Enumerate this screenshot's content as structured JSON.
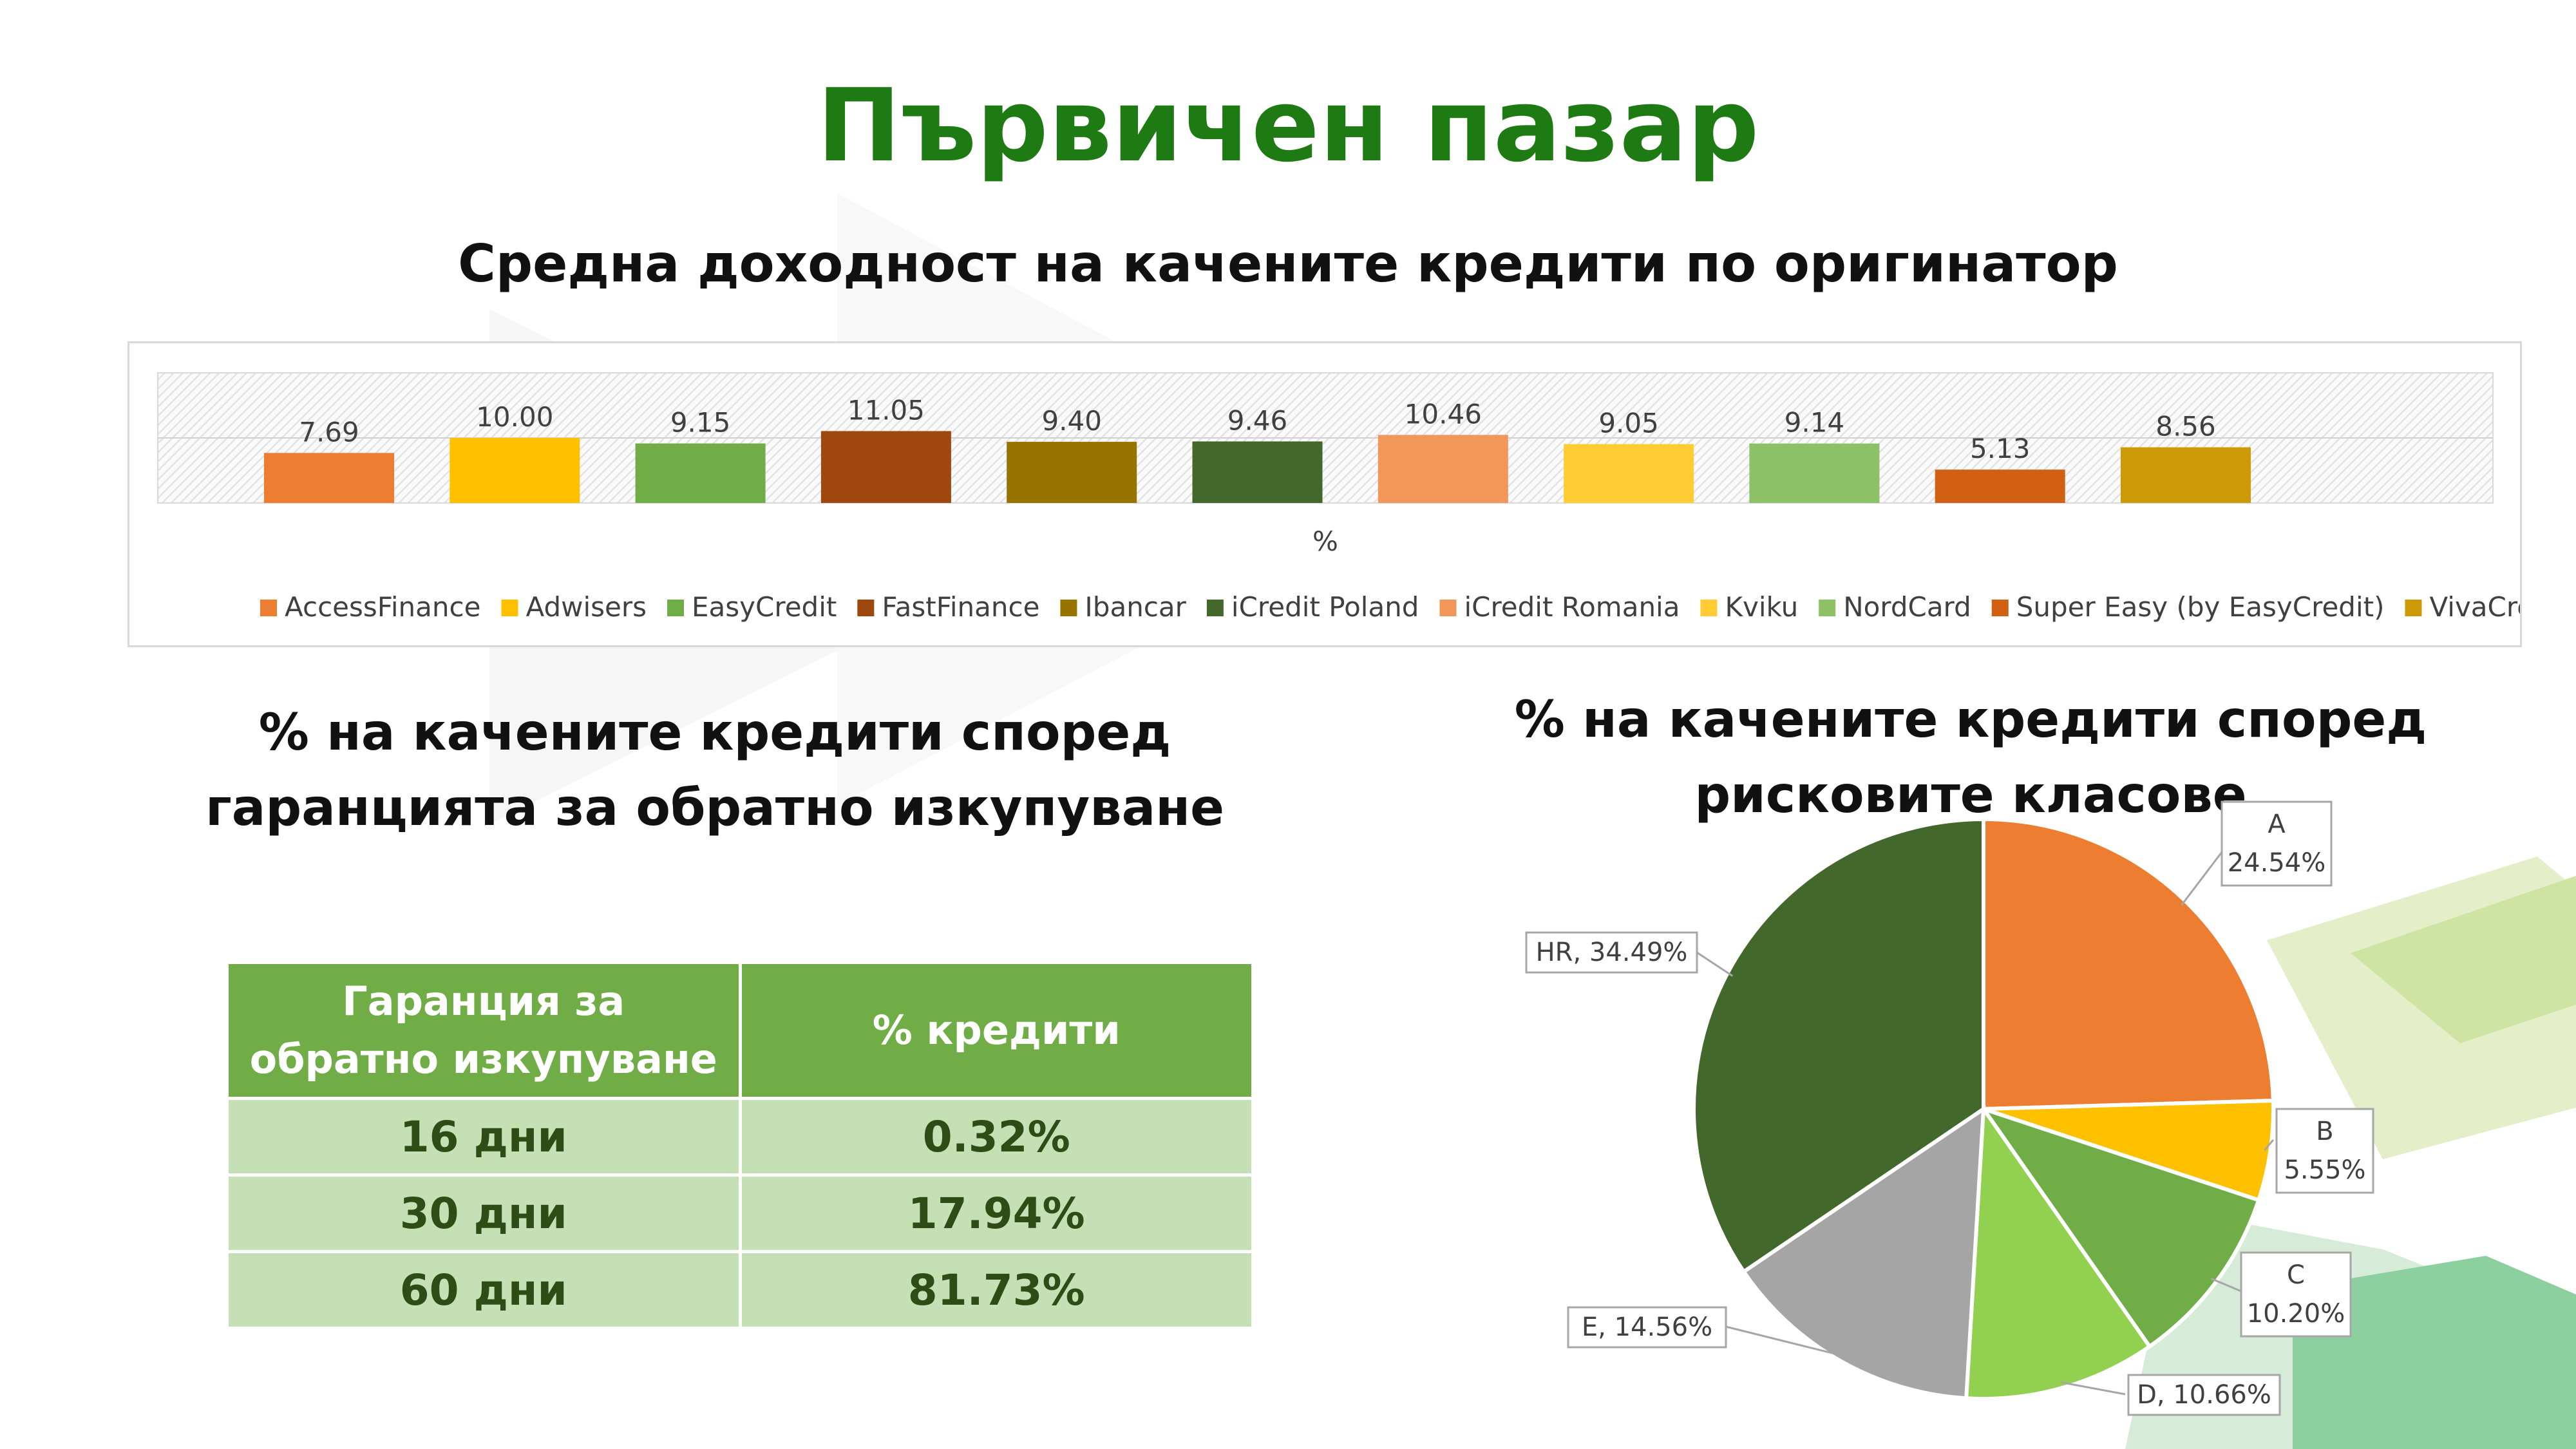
{
  "title": "Първичен пазар",
  "bar_section_title": "Средна доходност на качените кредити по оригинатор",
  "guarantee_section_title": "% на качените кредити според гаранцията за обратно изкупуване",
  "risk_section_title": "% на качените кредити според рисковите класове",
  "colors": {
    "title": "#1e7a12",
    "table_header": "#70ad47",
    "table_cell": "#c5e0b4"
  },
  "guarantee_table": {
    "headers": [
      "Гаранция за обратно изкупуване",
      "% кредити"
    ],
    "rows": [
      [
        "16 дни",
        "0.32%"
      ],
      [
        "30 дни",
        "17.94%"
      ],
      [
        "60 дни",
        "81.73%"
      ]
    ]
  },
  "chart_data": [
    {
      "type": "bar",
      "title": "",
      "xlabel": "%",
      "ylabel": "",
      "ylim": [
        0,
        20
      ],
      "grid": true,
      "legend_position": "bottom",
      "series": [
        {
          "name": "AccessFinance",
          "values": [
            7.69
          ],
          "color": "#ed7d31",
          "label": "7.69"
        },
        {
          "name": "Adwisers",
          "values": [
            10.0
          ],
          "color": "#ffc000",
          "label": "10.00"
        },
        {
          "name": "EasyCredit",
          "values": [
            9.15
          ],
          "color": "#70ad47",
          "label": "9.15"
        },
        {
          "name": "FastFinance",
          "values": [
            11.05
          ],
          "color": "#9e480e",
          "label": "11.05"
        },
        {
          "name": "Ibancar",
          "values": [
            9.4
          ],
          "color": "#997300",
          "label": "9.40"
        },
        {
          "name": "iCredit Poland",
          "values": [
            9.46
          ],
          "color": "#43682b",
          "label": "9.46"
        },
        {
          "name": "iCredit Romania",
          "values": [
            10.46
          ],
          "color": "#f1975a",
          "label": "10.46"
        },
        {
          "name": "Kviku",
          "values": [
            9.05
          ],
          "color": "#ffcd33",
          "label": "9.05"
        },
        {
          "name": "NordCard",
          "values": [
            9.14
          ],
          "color": "#8cc168",
          "label": "9.14"
        },
        {
          "name": "Super Easy (by EasyCredit)",
          "values": [
            5.13
          ],
          "color": "#d26012",
          "label": "5.13"
        },
        {
          "name": "VivaCredit",
          "values": [
            8.56
          ],
          "color": "#cc9a06",
          "label": "8.56"
        }
      ]
    },
    {
      "type": "pie",
      "title": "",
      "slices": [
        {
          "label": "A",
          "value": 24.54,
          "text": "24.54%",
          "color": "#ed7d31"
        },
        {
          "label": "B",
          "value": 5.55,
          "text": "5.55%",
          "color": "#ffc000"
        },
        {
          "label": "C",
          "value": 10.2,
          "text": "10.20%",
          "color": "#70ad47"
        },
        {
          "label": "D",
          "value": 10.66,
          "text": "D, 10.66%",
          "color": "#92d050"
        },
        {
          "label": "E",
          "value": 14.56,
          "text": "E, 14.56%",
          "color": "#a5a5a5"
        },
        {
          "label": "HR",
          "value": 34.49,
          "text": "HR, 34.49%",
          "color": "#43682b"
        }
      ]
    }
  ]
}
